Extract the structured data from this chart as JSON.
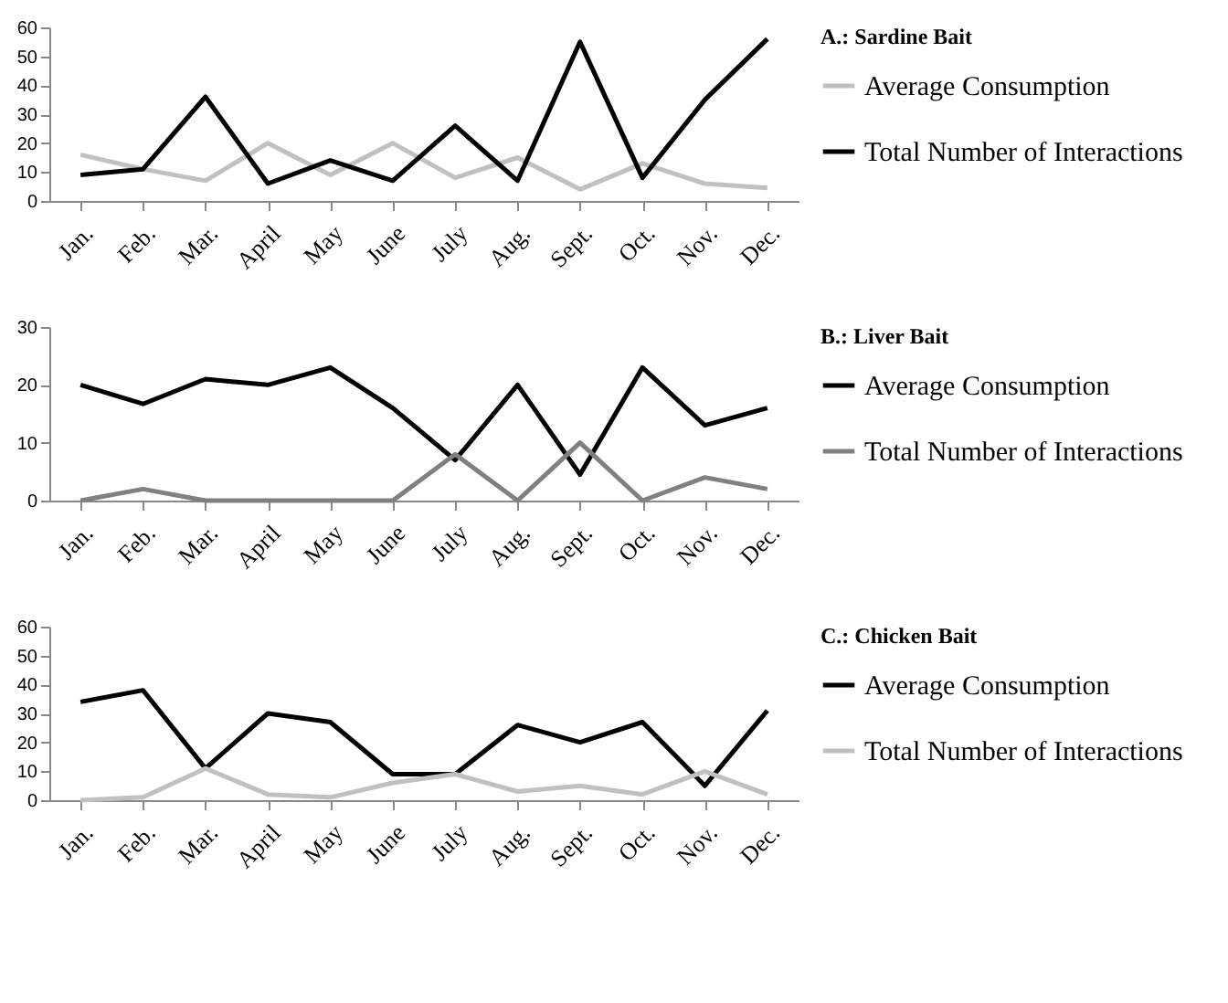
{
  "chart_data": [
    {
      "type": "line",
      "legend_title": "A.: Sardine Bait",
      "legend": "right",
      "grid": false,
      "categories": [
        "Jan.",
        "Feb.",
        "Mar.",
        "April",
        "May",
        "June",
        "July",
        "Aug.",
        "Sept.",
        "Oct.",
        "Nov.",
        "Dec."
      ],
      "ylim": [
        0,
        60
      ],
      "yticks": [
        0,
        10,
        20,
        30,
        40,
        50,
        60
      ],
      "series": [
        {
          "name": "Average Consumption",
          "color": "#c0c0c0",
          "values": [
            16,
            11,
            7,
            20,
            9,
            20,
            8,
            15,
            4,
            13,
            6,
            4.5
          ]
        },
        {
          "name": "Total Number of Interactions",
          "color": "#000000",
          "values": [
            9,
            11,
            36,
            6,
            14,
            7,
            26,
            7,
            55,
            8,
            35,
            56
          ]
        }
      ]
    },
    {
      "type": "line",
      "legend_title": "B.: Liver Bait",
      "legend": "right",
      "grid": false,
      "categories": [
        "Jan.",
        "Feb.",
        "Mar.",
        "April",
        "May",
        "June",
        "July",
        "Aug.",
        "Sept.",
        "Oct.",
        "Nov.",
        "Dec."
      ],
      "ylim": [
        0,
        30
      ],
      "yticks": [
        0,
        10,
        20,
        30
      ],
      "series": [
        {
          "name": "Average Consumption",
          "color": "#000000",
          "values": [
            20,
            16.7,
            21,
            20,
            23,
            16,
            7,
            20,
            4.5,
            23,
            13,
            16
          ]
        },
        {
          "name": "Total Number of Interactions",
          "color": "#808080",
          "values": [
            0,
            2,
            0,
            0,
            0,
            0,
            8,
            0,
            10,
            0,
            4,
            2
          ]
        }
      ]
    },
    {
      "type": "line",
      "legend_title": "C.: Chicken Bait",
      "legend": "right",
      "grid": false,
      "categories": [
        "Jan.",
        "Feb.",
        "Mar.",
        "April",
        "May",
        "June",
        "July",
        "Aug.",
        "Sept.",
        "Oct.",
        "Nov.",
        "Dec."
      ],
      "ylim": [
        0,
        60
      ],
      "yticks": [
        0,
        10,
        20,
        30,
        40,
        50,
        60
      ],
      "series": [
        {
          "name": "Average Consumption",
          "color": "#000000",
          "values": [
            34,
            38,
            11,
            30,
            27,
            9,
            9,
            26,
            20,
            27,
            5,
            31
          ]
        },
        {
          "name": "Total Number of Interactions",
          "color": "#c0c0c0",
          "values": [
            0,
            1,
            11,
            2,
            1,
            6,
            9,
            3,
            5,
            2,
            10,
            2
          ]
        }
      ]
    }
  ]
}
